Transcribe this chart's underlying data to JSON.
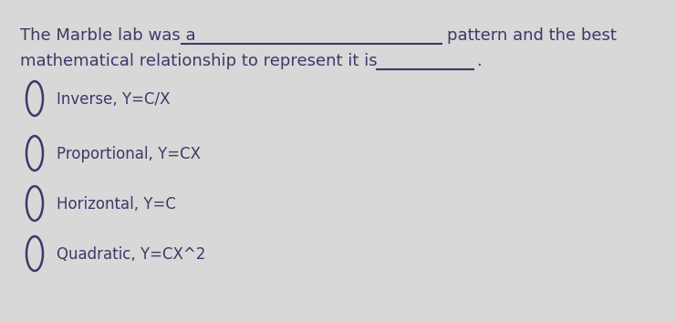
{
  "background_color": "#d8d8d8",
  "text_color": "#3a3a6a",
  "underline_color": "#3a3a6a",
  "font_size_body": 13,
  "font_size_options": 12,
  "circle_linewidth": 1.8,
  "line1_part1": "The Marble lab was a",
  "line1_part2": "pattern and the best",
  "line2_part1": "mathematical relationship to represent it is",
  "line2_period": ".",
  "options": [
    "Inverse, Y=C/X",
    "Proportional, Y=CX",
    "Horizontal, Y=C",
    "Quadratic, Y=CX^2"
  ]
}
